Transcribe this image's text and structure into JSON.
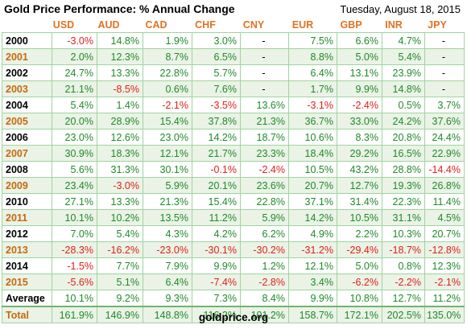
{
  "header": {
    "title": "Gold Price Performance: % Annual Change",
    "date": "Tuesday, August 18, 2015"
  },
  "columns": [
    "USD",
    "AUD",
    "CAD",
    "CHF",
    "CNY",
    "EUR",
    "GBP",
    "INR",
    "JPY"
  ],
  "rows": [
    {
      "label": "2000",
      "values": [
        "-3.0%",
        "14.8%",
        "1.9%",
        "3.0%",
        "-",
        "7.5%",
        "6.6%",
        "4.7%",
        "-"
      ]
    },
    {
      "label": "2001",
      "values": [
        "2.0%",
        "12.3%",
        "8.7%",
        "6.5%",
        "-",
        "8.8%",
        "5.0%",
        "5.4%",
        "-"
      ]
    },
    {
      "label": "2002",
      "values": [
        "24.7%",
        "13.3%",
        "22.8%",
        "5.7%",
        "-",
        "6.4%",
        "13.1%",
        "23.9%",
        "-"
      ]
    },
    {
      "label": "2003",
      "values": [
        "21.1%",
        "-8.5%",
        "0.6%",
        "7.6%",
        "-",
        "1.7%",
        "9.9%",
        "14.8%",
        "-"
      ]
    },
    {
      "label": "2004",
      "values": [
        "5.4%",
        "1.4%",
        "-2.1%",
        "-3.5%",
        "13.6%",
        "-3.1%",
        "-2.4%",
        "0.5%",
        "3.7%"
      ]
    },
    {
      "label": "2005",
      "values": [
        "20.0%",
        "28.9%",
        "15.4%",
        "37.8%",
        "21.3%",
        "36.7%",
        "33.0%",
        "24.2%",
        "37.6%"
      ]
    },
    {
      "label": "2006",
      "values": [
        "23.0%",
        "12.6%",
        "23.0%",
        "14.2%",
        "18.7%",
        "10.6%",
        "8.3%",
        "20.8%",
        "24.4%"
      ]
    },
    {
      "label": "2007",
      "values": [
        "30.9%",
        "18.3%",
        "12.1%",
        "21.7%",
        "23.3%",
        "18.4%",
        "29.2%",
        "16.5%",
        "22.9%"
      ]
    },
    {
      "label": "2008",
      "values": [
        "5.6%",
        "31.3%",
        "30.1%",
        "-0.1%",
        "-2.4%",
        "10.5%",
        "43.2%",
        "28.8%",
        "-14.4%"
      ]
    },
    {
      "label": "2009",
      "values": [
        "23.4%",
        "-3.0%",
        "5.9%",
        "20.1%",
        "23.6%",
        "20.7%",
        "12.7%",
        "19.3%",
        "26.8%"
      ]
    },
    {
      "label": "2010",
      "values": [
        "27.1%",
        "13.3%",
        "21.3%",
        "15.4%",
        "22.8%",
        "37.1%",
        "31.4%",
        "22.3%",
        "11.4%"
      ]
    },
    {
      "label": "2011",
      "values": [
        "10.1%",
        "10.2%",
        "13.5%",
        "11.2%",
        "5.9%",
        "14.2%",
        "10.5%",
        "31.1%",
        "4.5%"
      ]
    },
    {
      "label": "2012",
      "values": [
        "7.0%",
        "5.4%",
        "4.3%",
        "4.2%",
        "6.2%",
        "4.9%",
        "2.2%",
        "10.3%",
        "20.7%"
      ]
    },
    {
      "label": "2013",
      "values": [
        "-28.3%",
        "-16.2%",
        "-23.0%",
        "-30.1%",
        "-30.2%",
        "-31.2%",
        "-29.4%",
        "-18.7%",
        "-12.8%"
      ]
    },
    {
      "label": "2014",
      "values": [
        "-1.5%",
        "7.7%",
        "7.9%",
        "9.9%",
        "1.2%",
        "12.1%",
        "5.0%",
        "0.8%",
        "12.3%"
      ]
    },
    {
      "label": "2015",
      "values": [
        "-5.6%",
        "5.1%",
        "6.4%",
        "-7.4%",
        "-2.8%",
        "3.4%",
        "-6.2%",
        "-2.2%",
        "-2.1%"
      ]
    },
    {
      "label": "Average",
      "values": [
        "10.1%",
        "9.2%",
        "9.3%",
        "7.3%",
        "8.4%",
        "9.9%",
        "10.8%",
        "12.7%",
        "11.2%"
      ]
    },
    {
      "label": "Total",
      "values": [
        "161.9%",
        "146.9%",
        "148.8%",
        "116.2%",
        "101.2%",
        "158.7%",
        "172.1%",
        "202.5%",
        "135.0%"
      ]
    }
  ],
  "footer": {
    "source": "goldprice.org"
  },
  "colors": {
    "positive": "#1f8a2a",
    "negative": "#e0201a",
    "header_accent": "#e37222",
    "alt_row_bg": "#eaf3e6"
  }
}
